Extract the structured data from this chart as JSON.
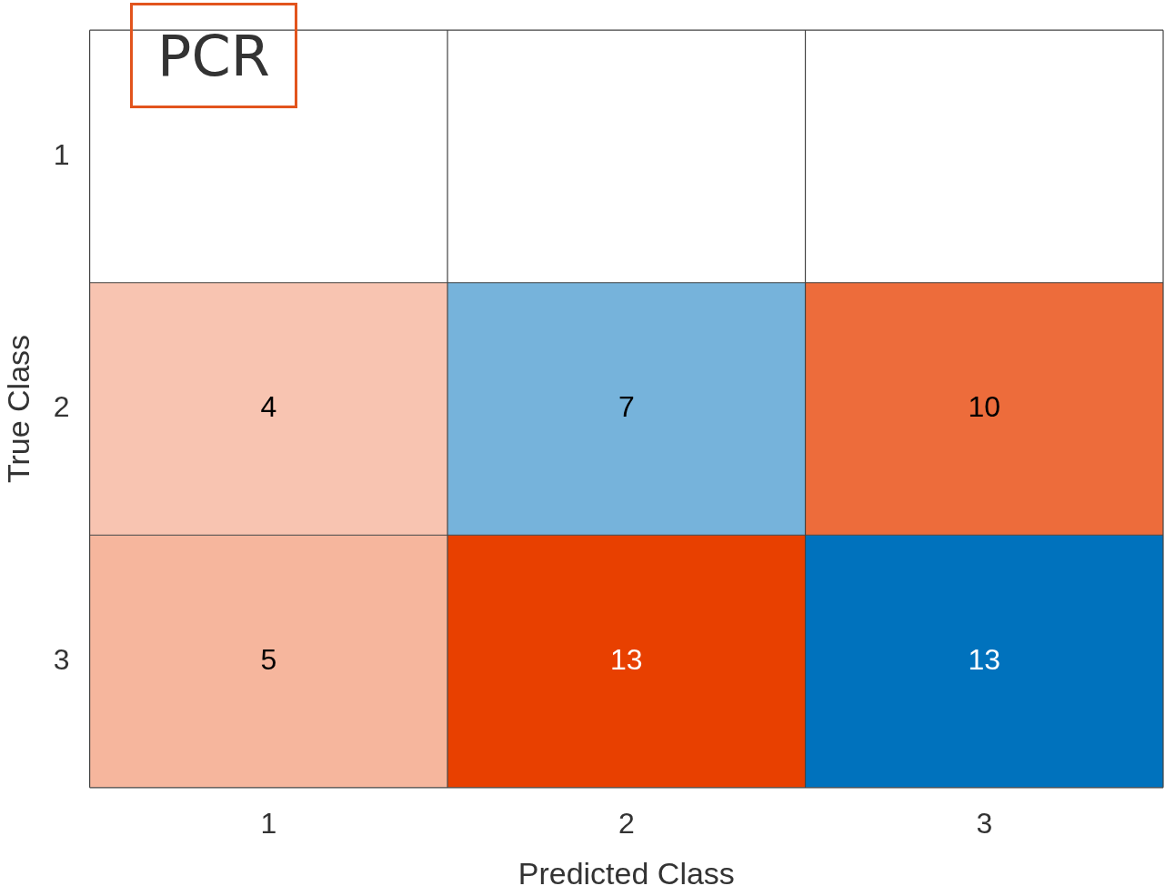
{
  "chart_data": {
    "type": "heatmap",
    "title": "PCR",
    "xlabel": "Predicted Class",
    "ylabel": "True Class",
    "categories": [
      "1",
      "2",
      "3"
    ],
    "y_categories": [
      "1",
      "2",
      "3"
    ],
    "cells": [
      [
        null,
        null,
        null
      ],
      [
        4,
        7,
        10
      ],
      [
        5,
        13,
        13
      ]
    ],
    "data_labels": true,
    "grid": true
  }
}
